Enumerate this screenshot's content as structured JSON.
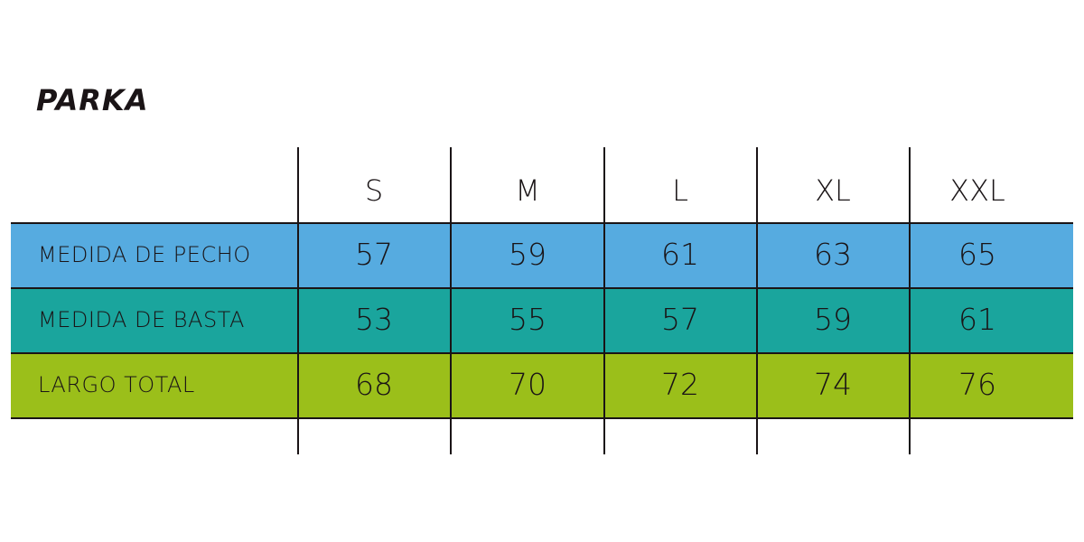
{
  "title": "PARKA",
  "table": {
    "columns": [
      "S",
      "M",
      "L",
      "XL",
      "XXL"
    ],
    "rows": [
      {
        "label": "MEDIDA DE PECHO",
        "values": [
          57,
          59,
          61,
          63,
          65
        ]
      },
      {
        "label": "MEDIDA DE BASTA",
        "values": [
          53,
          55,
          57,
          59,
          61
        ]
      },
      {
        "label": "LARGO TOTAL",
        "values": [
          68,
          70,
          72,
          74,
          76
        ]
      }
    ]
  }
}
